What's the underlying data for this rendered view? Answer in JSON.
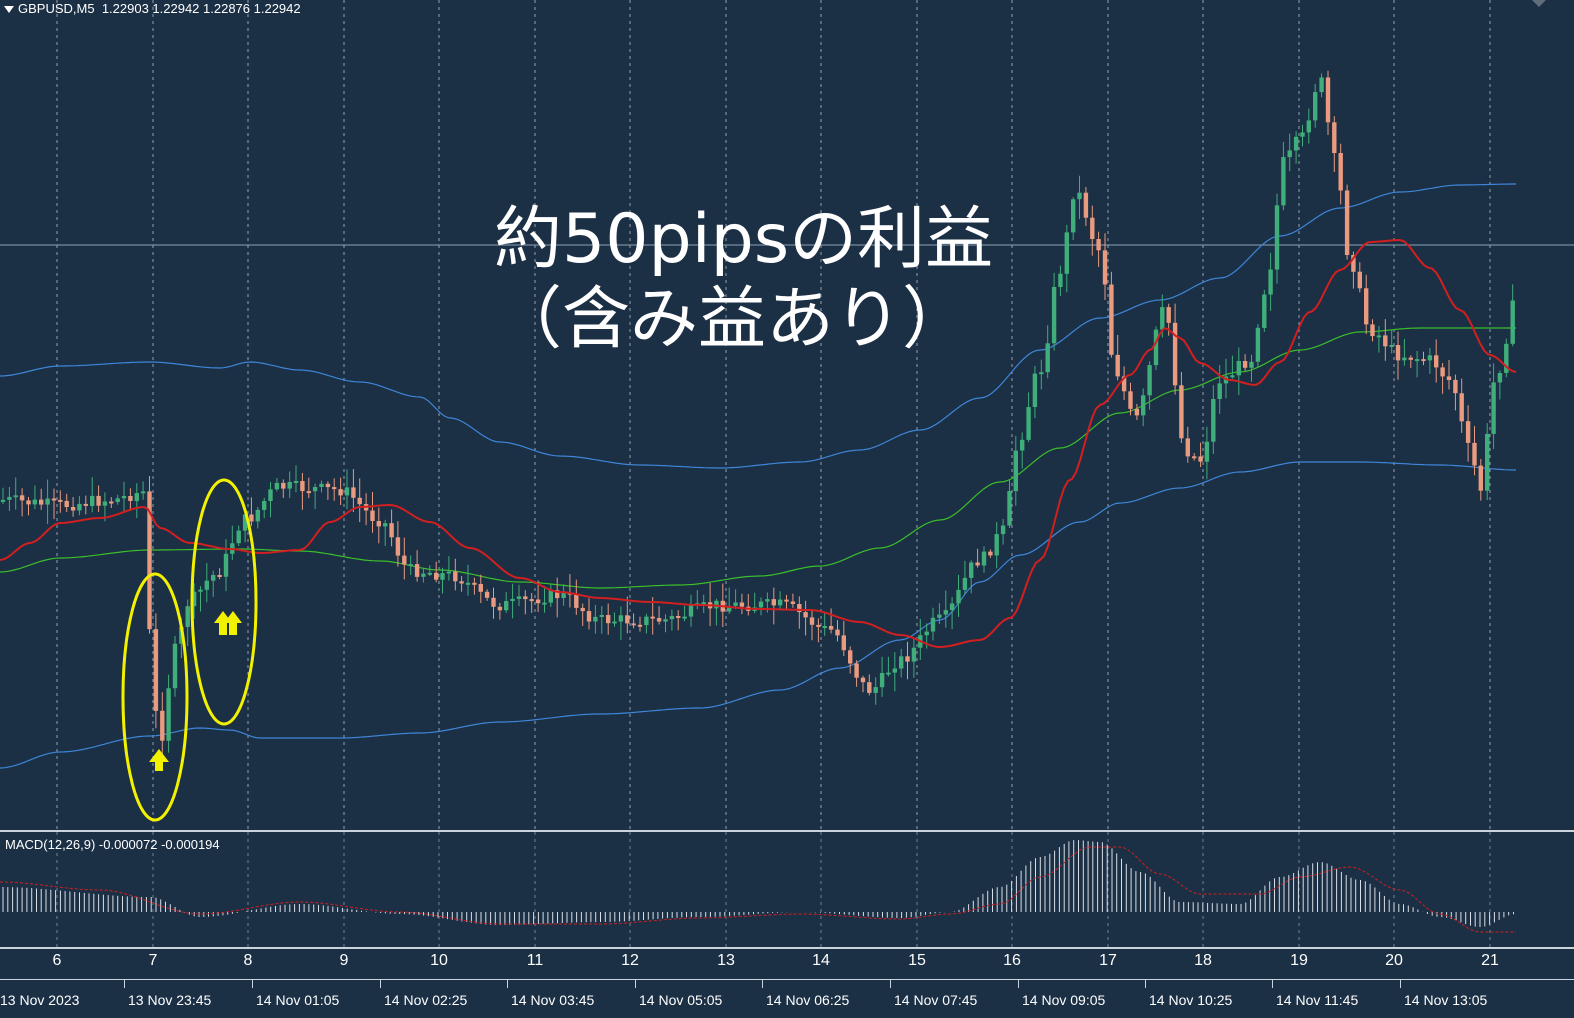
{
  "header": {
    "symbol": "GBPUSD,M5",
    "ohlc": "1.22903 1.22942 1.22876 1.22942"
  },
  "indicator": {
    "label": "MACD(12,26,9) -0.000072 -0.000194"
  },
  "annotation": {
    "line1": "約50pipsの利益",
    "line2": "（含み益あり）"
  },
  "scale_labels": [
    "6",
    "7",
    "8",
    "9",
    "10",
    "11",
    "12",
    "13",
    "14",
    "15",
    "16",
    "17",
    "18",
    "19",
    "20",
    "21"
  ],
  "time_labels": [
    "13 Nov 2023",
    "13 Nov 23:45",
    "14 Nov 01:05",
    "14 Nov 02:25",
    "14 Nov 03:45",
    "14 Nov 05:05",
    "14 Nov 06:25",
    "14 Nov 07:45",
    "14 Nov 09:05",
    "14 Nov 10:25",
    "14 Nov 11:45",
    "14 Nov 13:05"
  ],
  "colors": {
    "background": "#1b2f45",
    "bull_candle": "#3fae7a",
    "bear_candle": "#e99a7f",
    "bollinger": "#3f86d8",
    "ma_red": "#d21f1f",
    "ma_green": "#3bbf2a",
    "highlight": "#f2f200",
    "grid": "#c9d3dd"
  },
  "markers": {
    "arrow_icon": "up-arrow-icon",
    "double_arrow_icon": "double-up-arrow-icon"
  }
}
